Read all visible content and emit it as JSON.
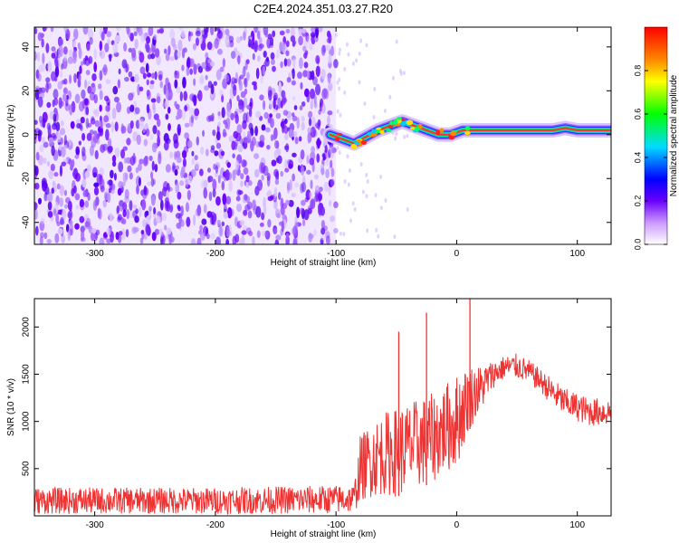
{
  "figure_title": "C2E4.2024.351.03.27.R20",
  "chart_data": [
    {
      "type": "heatmap",
      "title": "",
      "xlabel": "Height of straight line (km)",
      "ylabel": "Frequency (Hz)",
      "xlim": [
        -350,
        128
      ],
      "ylim": [
        -50,
        49
      ],
      "x_ticks": [
        -300,
        -200,
        -100,
        0,
        100
      ],
      "y_ticks": [
        -40,
        -20,
        0,
        20,
        40
      ],
      "noise_region_x": [
        -350,
        -100
      ],
      "signal_track": {
        "x": [
          -105,
          -95,
          -85,
          -75,
          -65,
          -55,
          -45,
          -35,
          -25,
          -15,
          -5,
          5,
          15,
          25,
          40,
          60,
          80,
          90,
          100,
          110,
          128
        ],
        "y": [
          0,
          -2,
          -4,
          -1,
          2,
          4,
          6,
          4,
          2,
          0,
          0,
          2,
          2,
          2,
          2,
          2,
          2,
          3,
          2,
          2,
          2
        ]
      },
      "colorbar": {
        "label": "Normalized spectral amplitude",
        "range": [
          0.0,
          1.0
        ],
        "ticks": [
          0.0,
          0.2,
          0.4,
          0.6,
          0.8
        ]
      }
    },
    {
      "type": "line",
      "title": "",
      "xlabel": "Height of straight line (km)",
      "ylabel": "SNR (10 * v/v)",
      "xlim": [
        -350,
        128
      ],
      "ylim": [
        0,
        2300
      ],
      "x_ticks": [
        -300,
        -200,
        -100,
        0,
        100
      ],
      "y_ticks": [
        500,
        1000,
        1500,
        2000
      ],
      "series": [
        {
          "color": "#ee3333",
          "envelope": {
            "x": [
              -350,
              -300,
              -200,
              -120,
              -85,
              -80,
              -70,
              -60,
              -50,
              -40,
              -30,
              -20,
              -10,
              0,
              10,
              20,
              30,
              40,
              50,
              60,
              70,
              80,
              90,
              100,
              110,
              128
            ],
            "low": [
              20,
              20,
              20,
              20,
              30,
              150,
              200,
              220,
              200,
              250,
              300,
              350,
              450,
              500,
              900,
              1100,
              1350,
              1450,
              1450,
              1400,
              1300,
              1150,
              1050,
              1000,
              950,
              950
            ],
            "high": [
              300,
              300,
              300,
              320,
              330,
              850,
              1000,
              1100,
              1150,
              1200,
              1250,
              1300,
              1400,
              1500,
              1600,
              1600,
              1650,
              1700,
              1720,
              1650,
              1550,
              1450,
              1350,
              1300,
              1250,
              1250
            ]
          },
          "spikes": [
            {
              "x": -48,
              "y": 1950
            },
            {
              "x": -25,
              "y": 2150
            },
            {
              "x": 11,
              "y": 2300
            }
          ]
        }
      ]
    }
  ]
}
